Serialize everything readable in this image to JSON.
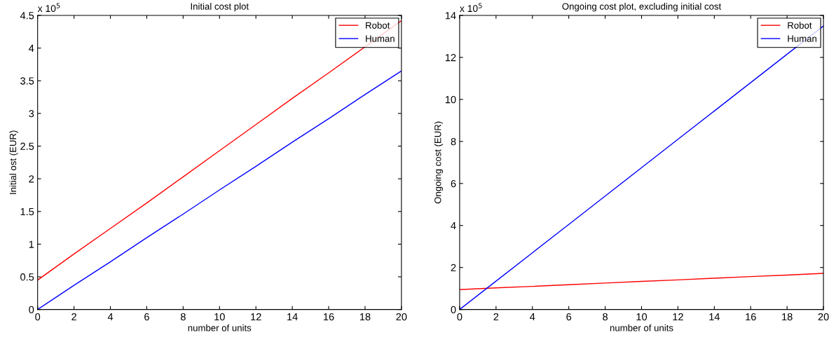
{
  "chart_data": [
    {
      "type": "line",
      "title": "Initial cost plot",
      "xlabel": "number of units",
      "ylabel": "Initial ost (EUR)",
      "annotations": [
        "x 10$^{5}$"
      ],
      "x": [
        0,
        2,
        4,
        6,
        8,
        10,
        12,
        14,
        16,
        18,
        20
      ],
      "xlim": [
        0,
        20
      ],
      "xticks": [
        0,
        2,
        4,
        6,
        8,
        10,
        12,
        14,
        16,
        18,
        20
      ],
      "ylim": [
        0,
        4.5
      ],
      "yticks": [
        0,
        0.5,
        1,
        1.5,
        2,
        2.5,
        3,
        3.5,
        4,
        4.5
      ],
      "grid": false,
      "legend": "top right",
      "series": [
        {
          "name": "Robot",
          "color": "#ff0000",
          "values": [
            0.45,
            0.85,
            1.24,
            1.63,
            2.03,
            2.43,
            2.83,
            3.23,
            3.62,
            4.02,
            4.42
          ]
        },
        {
          "name": "Human",
          "color": "#0000ff",
          "values": [
            0,
            0.37,
            0.73,
            1.1,
            1.46,
            1.83,
            2.19,
            2.56,
            2.92,
            3.29,
            3.65
          ]
        }
      ]
    },
    {
      "type": "line",
      "title": "Ongoing cost plot, excluding initial cost",
      "xlabel": "number of units",
      "ylabel": "Ongoing cost (EUR)",
      "annotations": [
        "x 10$^{5}$"
      ],
      "x": [
        0,
        2,
        4,
        6,
        8,
        10,
        12,
        14,
        16,
        18,
        20
      ],
      "xlim": [
        0,
        20
      ],
      "xticks": [
        0,
        2,
        4,
        6,
        8,
        10,
        12,
        14,
        16,
        18,
        20
      ],
      "ylim": [
        0,
        14
      ],
      "yticks": [
        0,
        2,
        4,
        6,
        8,
        10,
        12,
        14
      ],
      "grid": false,
      "legend": "top right",
      "series": [
        {
          "name": "Robot",
          "color": "#ff0000",
          "values": [
            0.95,
            1.03,
            1.1,
            1.18,
            1.26,
            1.34,
            1.41,
            1.49,
            1.57,
            1.64,
            1.72
          ]
        },
        {
          "name": "Human",
          "color": "#0000ff",
          "values": [
            0,
            1.35,
            2.7,
            4.05,
            5.4,
            6.75,
            8.1,
            9.45,
            10.8,
            12.15,
            13.5
          ]
        }
      ]
    }
  ]
}
